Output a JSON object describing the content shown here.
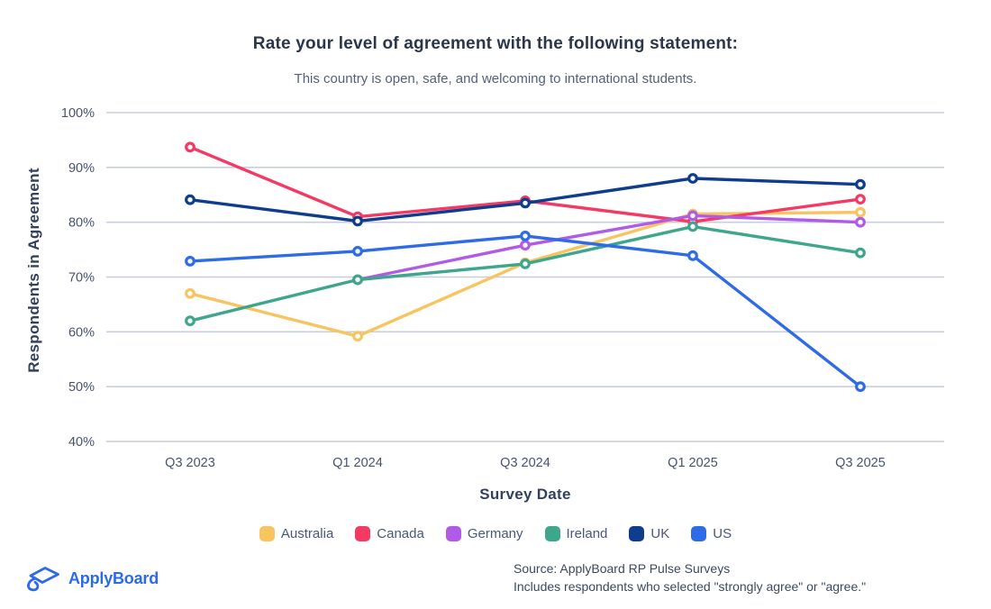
{
  "chart_data": {
    "type": "line",
    "title": "Rate your level of agreement with the following statement:",
    "subtitle": "This country is open, safe, and welcoming to international students.",
    "xlabel": "Survey Date",
    "ylabel": "Respondents in Agreement",
    "x_categories": [
      "Q3 2023",
      "Q1 2024",
      "Q3 2024",
      "Q1 2025",
      "Q3 2025"
    ],
    "ylim": [
      40,
      100
    ],
    "y_ticks": [
      {
        "value": 100,
        "label": "100%"
      },
      {
        "value": 90,
        "label": "90%"
      },
      {
        "value": 80,
        "label": "80%"
      },
      {
        "value": 70,
        "label": "70%"
      },
      {
        "value": 60,
        "label": "60%"
      },
      {
        "value": 50,
        "label": "50%"
      },
      {
        "value": 40,
        "label": "40%"
      }
    ],
    "grid": "horizontal gridlines only",
    "legend_position": "bottom",
    "marker": "open-circle",
    "series": [
      {
        "name": "Australia",
        "color": "#F7C45F",
        "values": [
          67,
          59.2,
          72.6,
          81.5,
          81.8
        ]
      },
      {
        "name": "Canada",
        "color": "#F43A64",
        "values": [
          93.7,
          81,
          83.9,
          80.1,
          84.2
        ]
      },
      {
        "name": "Germany",
        "color": "#B25AE8",
        "values": [
          null,
          69.5,
          75.8,
          81.2,
          80
        ]
      },
      {
        "name": "Ireland",
        "color": "#3EA68C",
        "values": [
          62,
          69.5,
          72.4,
          79.2,
          74.4
        ]
      },
      {
        "name": "UK",
        "color": "#0E3D8D",
        "values": [
          84.1,
          80.2,
          83.5,
          88,
          86.9
        ]
      },
      {
        "name": "US",
        "color": "#2D6CE5",
        "values": [
          72.9,
          74.7,
          77.5,
          73.9,
          50
        ]
      }
    ]
  },
  "footer": {
    "logo_text": "ApplyBoard",
    "source_line1": "Source: ApplyBoard RP Pulse Surveys",
    "source_line2": "Includes respondents who selected \"strongly agree\" or \"agree.\""
  },
  "colors": {
    "grid": "#C8CEDC",
    "title_text": "#2B3648",
    "axis_text": "#47536E",
    "brand_blue": "#2B6BE8"
  }
}
